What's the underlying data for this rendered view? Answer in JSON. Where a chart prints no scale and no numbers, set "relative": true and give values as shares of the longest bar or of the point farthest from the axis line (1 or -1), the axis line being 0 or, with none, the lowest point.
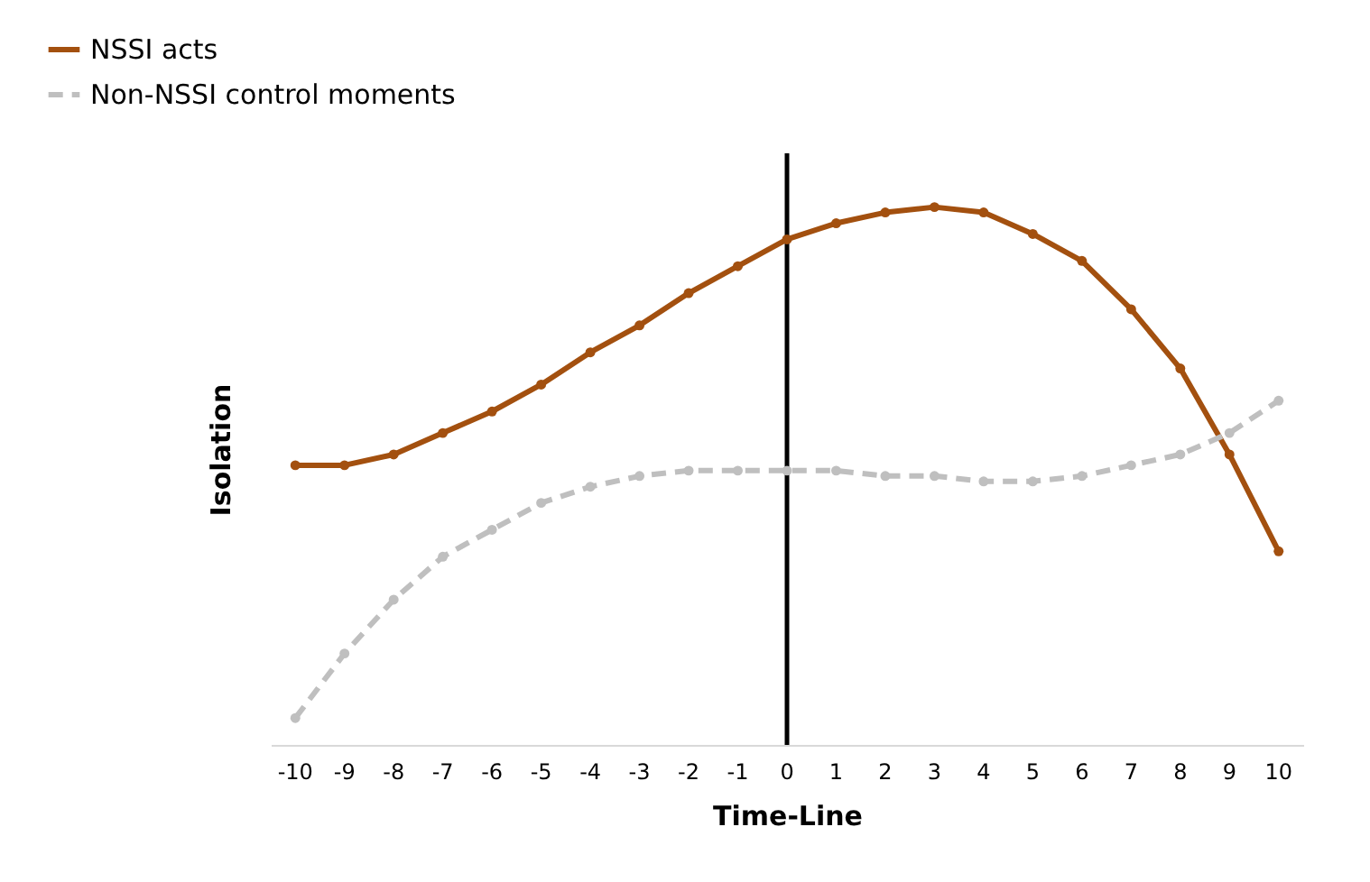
{
  "chart_data": {
    "type": "line",
    "relative": true,
    "xlabel": "Time-Line",
    "ylabel": "Isolation",
    "x": [
      -10,
      -9,
      -8,
      -7,
      -6,
      -5,
      -4,
      -3,
      -2,
      -1,
      0,
      1,
      2,
      3,
      4,
      5,
      6,
      7,
      8,
      9,
      10
    ],
    "xlim": [
      -10.5,
      10.5
    ],
    "xticks": [
      -10,
      -9,
      -8,
      -7,
      -6,
      -5,
      -4,
      -3,
      -2,
      -1,
      0,
      1,
      2,
      3,
      4,
      5,
      6,
      7,
      8,
      9,
      10
    ],
    "series": [
      {
        "name": "NSSI acts",
        "color": "#a3500f",
        "line_style": "solid",
        "values": [
          0.52,
          0.52,
          0.54,
          0.58,
          0.62,
          0.67,
          0.73,
          0.78,
          0.84,
          0.89,
          0.94,
          0.97,
          0.99,
          1,
          0.99,
          0.95,
          0.9,
          0.81,
          0.7,
          0.54,
          0.36
        ]
      },
      {
        "name": "Non-NSSI control moments",
        "color": "#bfbfbf",
        "line_style": "dashed",
        "values": [
          0.05,
          0.17,
          0.27,
          0.35,
          0.4,
          0.45,
          0.48,
          0.5,
          0.51,
          0.51,
          0.51,
          0.51,
          0.5,
          0.5,
          0.49,
          0.49,
          0.5,
          0.52,
          0.54,
          0.58,
          0.64
        ]
      }
    ],
    "ref_lines": [
      {
        "axis": "x",
        "value": 0,
        "color": "#000000"
      }
    ],
    "marker": "circle",
    "legend": "top left",
    "grid": false
  }
}
